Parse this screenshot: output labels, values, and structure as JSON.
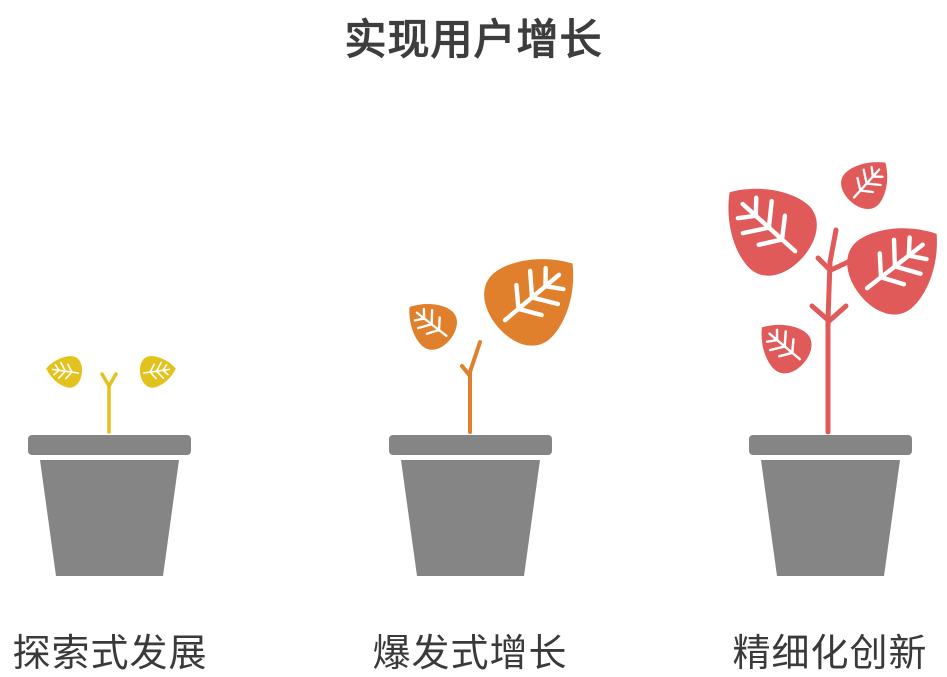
{
  "title": "实现用户增长",
  "stages": [
    {
      "label": "探索式发展",
      "color": "#E3C21E"
    },
    {
      "label": "爆发式增长",
      "color": "#E07F2C"
    },
    {
      "label": "精细化创新",
      "color": "#E05A5A"
    }
  ],
  "pot_color": "#858585",
  "vein_color": "#ffffff"
}
